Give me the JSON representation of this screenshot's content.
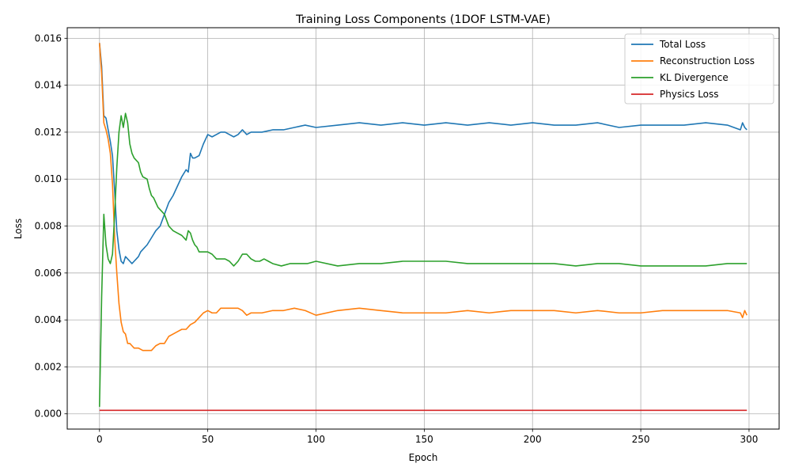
{
  "chart_data": {
    "type": "line",
    "title": "Training Loss Components (1DOF LSTM-VAE)",
    "xlabel": "Epoch",
    "ylabel": "Loss",
    "xlim": [
      -14.9,
      313.9
    ],
    "ylim": [
      -0.00065,
      0.01645
    ],
    "xticks": [
      0,
      50,
      100,
      150,
      200,
      250,
      300
    ],
    "yticks": [
      0.0,
      0.002,
      0.004,
      0.006,
      0.008,
      0.01,
      0.012,
      0.014,
      0.016
    ],
    "ytick_labels": [
      "0.000",
      "0.002",
      "0.004",
      "0.006",
      "0.008",
      "0.010",
      "0.012",
      "0.014",
      "0.016"
    ],
    "grid": true,
    "legend_position": "top-right",
    "series": [
      {
        "name": "Total Loss",
        "color": "#1f77b4",
        "x": [
          0,
          1,
          2,
          3,
          4,
          5,
          6,
          7,
          8,
          9,
          10,
          11,
          12,
          13,
          14,
          15,
          16,
          17,
          18,
          19,
          20,
          22,
          24,
          26,
          28,
          30,
          32,
          34,
          36,
          38,
          40,
          41,
          42,
          43,
          44,
          46,
          48,
          50,
          52,
          54,
          56,
          58,
          60,
          62,
          64,
          66,
          68,
          70,
          75,
          80,
          85,
          90,
          95,
          100,
          110,
          120,
          130,
          140,
          150,
          160,
          170,
          180,
          190,
          200,
          210,
          220,
          230,
          240,
          250,
          260,
          270,
          280,
          290,
          296,
          297,
          298,
          299
        ],
        "y": [
          0.0158,
          0.0148,
          0.0127,
          0.0126,
          0.0121,
          0.0116,
          0.011,
          0.0095,
          0.0078,
          0.007,
          0.0065,
          0.0064,
          0.0067,
          0.0066,
          0.0065,
          0.0064,
          0.0065,
          0.0066,
          0.0067,
          0.0069,
          0.007,
          0.0072,
          0.0075,
          0.0078,
          0.008,
          0.0085,
          0.009,
          0.0093,
          0.0097,
          0.0101,
          0.0104,
          0.0103,
          0.0111,
          0.0109,
          0.0109,
          0.011,
          0.0115,
          0.0119,
          0.0118,
          0.0119,
          0.012,
          0.012,
          0.0119,
          0.0118,
          0.0119,
          0.0121,
          0.0119,
          0.012,
          0.012,
          0.0121,
          0.0121,
          0.0122,
          0.0123,
          0.0122,
          0.0123,
          0.0124,
          0.0123,
          0.0124,
          0.0123,
          0.0124,
          0.0123,
          0.0124,
          0.0123,
          0.0124,
          0.0123,
          0.0123,
          0.0124,
          0.0122,
          0.0123,
          0.0123,
          0.0123,
          0.0124,
          0.0123,
          0.0121,
          0.0124,
          0.0122,
          0.0121
        ]
      },
      {
        "name": "Reconstruction Loss",
        "color": "#ff7f0e",
        "x": [
          0,
          1,
          2,
          3,
          4,
          5,
          6,
          7,
          8,
          9,
          10,
          11,
          12,
          13,
          14,
          15,
          16,
          18,
          20,
          22,
          24,
          26,
          28,
          30,
          32,
          34,
          36,
          38,
          40,
          42,
          44,
          46,
          48,
          50,
          52,
          54,
          56,
          58,
          60,
          62,
          64,
          66,
          68,
          70,
          75,
          80,
          85,
          90,
          95,
          100,
          110,
          120,
          130,
          140,
          150,
          160,
          170,
          180,
          190,
          200,
          210,
          220,
          230,
          240,
          250,
          260,
          270,
          280,
          290,
          296,
          297,
          298,
          299
        ],
        "y": [
          0.0158,
          0.0145,
          0.0124,
          0.0121,
          0.0117,
          0.0111,
          0.0098,
          0.0075,
          0.006,
          0.0047,
          0.0039,
          0.0035,
          0.0034,
          0.003,
          0.003,
          0.0029,
          0.0028,
          0.0028,
          0.0027,
          0.0027,
          0.0027,
          0.0029,
          0.003,
          0.003,
          0.0033,
          0.0034,
          0.0035,
          0.0036,
          0.0036,
          0.0038,
          0.0039,
          0.0041,
          0.0043,
          0.0044,
          0.0043,
          0.0043,
          0.0045,
          0.0045,
          0.0045,
          0.0045,
          0.0045,
          0.0044,
          0.0042,
          0.0043,
          0.0043,
          0.0044,
          0.0044,
          0.0045,
          0.0044,
          0.0042,
          0.0044,
          0.0045,
          0.0044,
          0.0043,
          0.0043,
          0.0043,
          0.0044,
          0.0043,
          0.0044,
          0.0044,
          0.0044,
          0.0043,
          0.0044,
          0.0043,
          0.0043,
          0.0044,
          0.0044,
          0.0044,
          0.0044,
          0.0043,
          0.0041,
          0.0044,
          0.0042
        ]
      },
      {
        "name": "KL Divergence",
        "color": "#2ca02c",
        "x": [
          0,
          1,
          2,
          3,
          4,
          5,
          6,
          7,
          8,
          9,
          10,
          11,
          12,
          13,
          14,
          15,
          16,
          18,
          19,
          20,
          22,
          23,
          24,
          25,
          26,
          27,
          28,
          30,
          32,
          33,
          34,
          36,
          38,
          40,
          41,
          42,
          43,
          44,
          45,
          46,
          48,
          50,
          52,
          54,
          56,
          58,
          60,
          62,
          64,
          66,
          68,
          70,
          72,
          74,
          76,
          78,
          80,
          84,
          88,
          92,
          96,
          100,
          110,
          120,
          130,
          140,
          150,
          160,
          170,
          180,
          190,
          200,
          210,
          220,
          230,
          240,
          250,
          260,
          270,
          280,
          290,
          299
        ],
        "y": [
          0.0003,
          0.005,
          0.0085,
          0.0072,
          0.0066,
          0.0064,
          0.0068,
          0.0085,
          0.0105,
          0.012,
          0.0127,
          0.0122,
          0.0128,
          0.0124,
          0.0115,
          0.0111,
          0.0109,
          0.0107,
          0.0103,
          0.0101,
          0.01,
          0.0096,
          0.0093,
          0.0092,
          0.009,
          0.0088,
          0.0087,
          0.0085,
          0.008,
          0.0079,
          0.0078,
          0.0077,
          0.0076,
          0.0074,
          0.0078,
          0.0077,
          0.0074,
          0.0072,
          0.0071,
          0.0069,
          0.0069,
          0.0069,
          0.0068,
          0.0066,
          0.0066,
          0.0066,
          0.0065,
          0.0063,
          0.0065,
          0.0068,
          0.0068,
          0.0066,
          0.0065,
          0.0065,
          0.0066,
          0.0065,
          0.0064,
          0.0063,
          0.0064,
          0.0064,
          0.0064,
          0.0065,
          0.0063,
          0.0064,
          0.0064,
          0.0065,
          0.0065,
          0.0065,
          0.0064,
          0.0064,
          0.0064,
          0.0064,
          0.0064,
          0.0063,
          0.0064,
          0.0064,
          0.0063,
          0.0063,
          0.0063,
          0.0063,
          0.0064,
          0.0064
        ]
      },
      {
        "name": "Physics Loss",
        "color": "#d62728",
        "x": [
          0,
          299
        ],
        "y": [
          0.00015,
          0.00015
        ]
      }
    ]
  }
}
